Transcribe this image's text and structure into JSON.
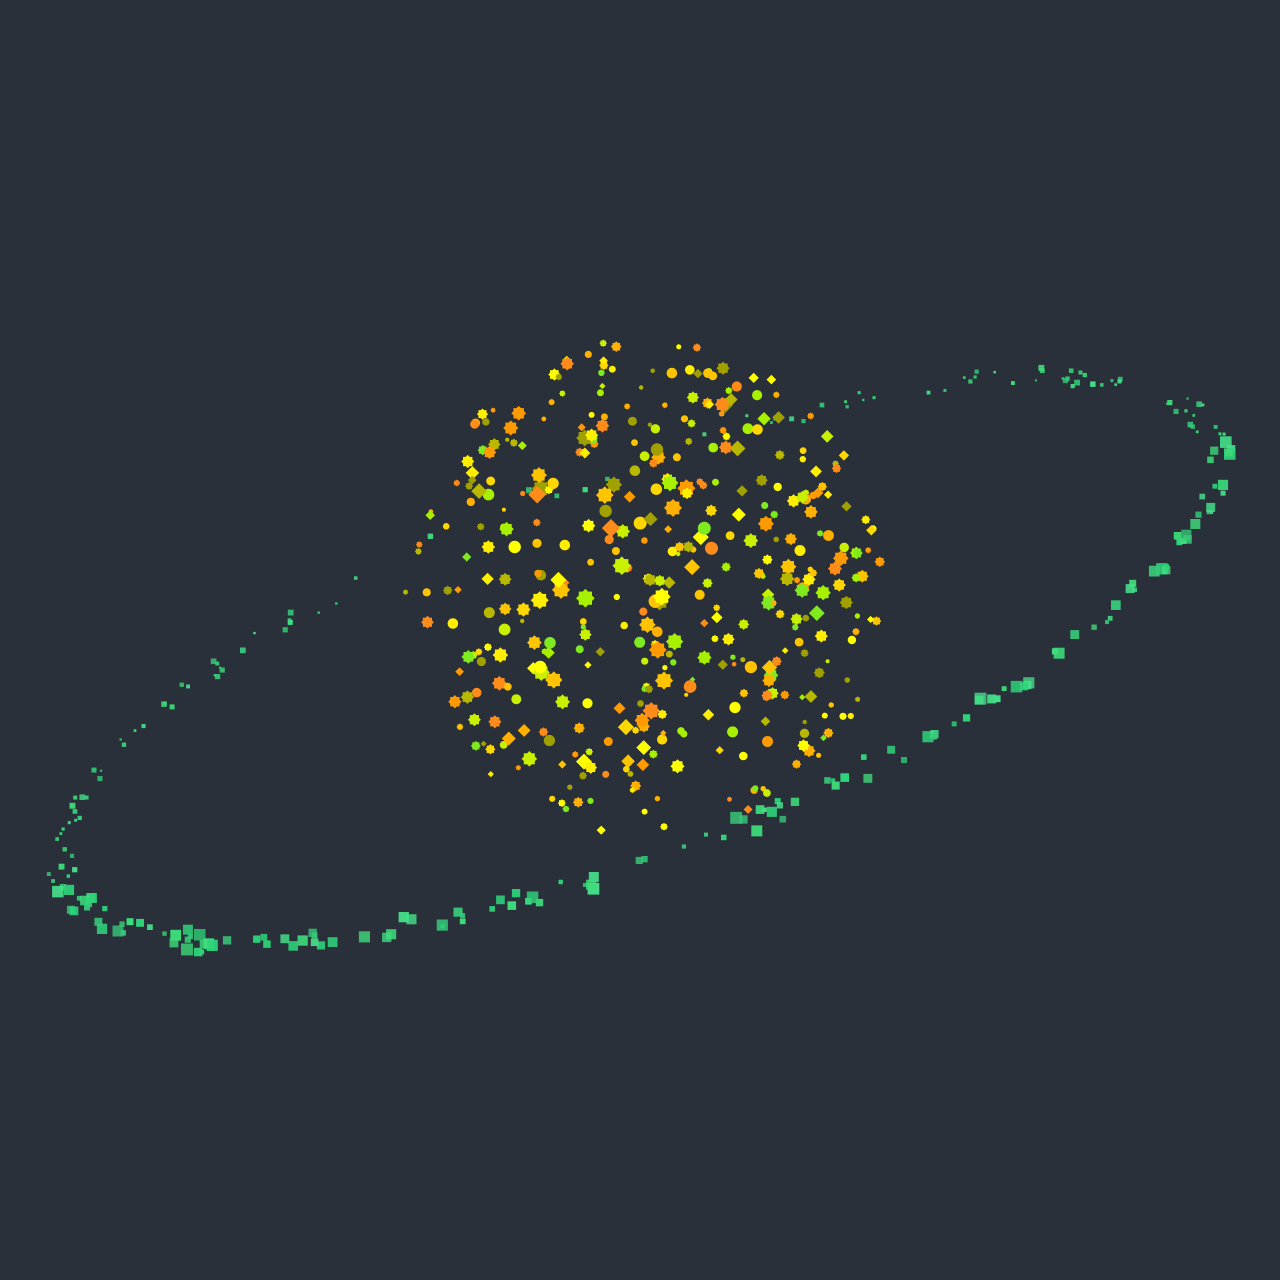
{
  "scene": {
    "subject": "planet-with-ring",
    "background_color": "#29303a",
    "planet": {
      "particle_count": 420,
      "particle_colors": [
        "#ffff00",
        "#ffee00",
        "#ffd700",
        "#ffc400",
        "#ffb000",
        "#ff9a00",
        "#ff8c1a",
        "#c8f000",
        "#a6f000",
        "#7fea1f",
        "#b8b800",
        "#a0a000"
      ]
    },
    "ring": {
      "particle_count": 260,
      "particle_colors": [
        "#3ddc7a",
        "#2ed47a",
        "#45e08a",
        "#38c97a"
      ]
    }
  }
}
